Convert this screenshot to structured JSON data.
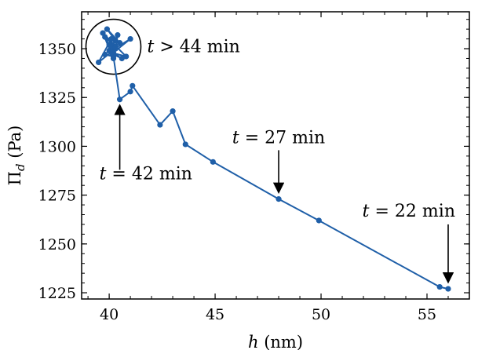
{
  "chart_data": {
    "type": "line",
    "xlabel": {
      "var": "h",
      "unit": "(nm)"
    },
    "ylabel": {
      "var": "Π",
      "sub": "d",
      "unit": "(Pa)"
    },
    "xlim": [
      38.7,
      57.0
    ],
    "ylim": [
      1221.8,
      1368.9
    ],
    "xticks_major": [
      40,
      45,
      50,
      55
    ],
    "yticks_major": [
      1225,
      1250,
      1275,
      1300,
      1325,
      1350
    ],
    "xticks_minor_step": 1,
    "yticks_minor_step": 5,
    "grid": false,
    "legend": "none",
    "series": [
      {
        "color": "#1f5fa8",
        "x": [
          56.0,
          55.6,
          49.9,
          48.0,
          44.9,
          43.6,
          43.0,
          42.4,
          41.1,
          41.0,
          40.5,
          40.2,
          39.8,
          40.1,
          40.3,
          39.9,
          40.5,
          40.0,
          40.6,
          40.2,
          40.1,
          39.5,
          40.3,
          40.4,
          40.1,
          41.0,
          40.2,
          40.0,
          39.8,
          40.3,
          40.2,
          39.7,
          40.8,
          40.1
        ],
        "y": [
          1227,
          1228,
          1262,
          1273,
          1292,
          1301,
          1318,
          1311,
          1331,
          1328,
          1324,
          1346,
          1347,
          1350,
          1354,
          1360,
          1353,
          1349,
          1345,
          1347,
          1355,
          1343,
          1350,
          1357,
          1349,
          1355,
          1348,
          1352,
          1356,
          1351,
          1345,
          1358,
          1346,
          1348
        ]
      }
    ],
    "annotations": [
      {
        "italic": "t",
        "text": " = 22 min",
        "points_to": [
          56.0,
          1227
        ]
      },
      {
        "italic": "t",
        "text": " = 27 min",
        "points_to": [
          48.0,
          1273
        ]
      },
      {
        "italic": "t",
        "text": " = 42 min",
        "points_to": [
          40.5,
          1324
        ]
      },
      {
        "italic": "t",
        "text": " > 44 min",
        "circle_center": [
          40.2,
          1351
        ]
      }
    ]
  }
}
